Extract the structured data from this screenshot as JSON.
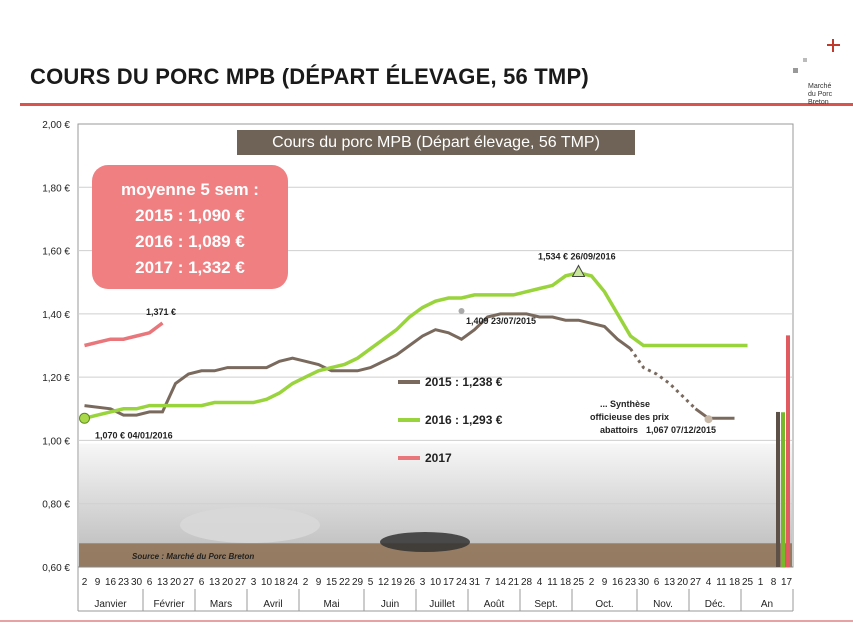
{
  "header": {
    "title": "COURS DU PORC MPB (DÉPART ÉLEVAGE, 56 TMP)",
    "logo_text": [
      "Marché",
      "du Porc",
      "Breton"
    ]
  },
  "chart_data": {
    "type": "line",
    "title": "Cours du porc MPB (Départ élevage, 56 TMP)",
    "ylim": [
      0.6,
      2.0
    ],
    "yticks": [
      "0,60 €",
      "0,80 €",
      "1,00 €",
      "1,20 €",
      "1,40 €",
      "1,60 €",
      "1,80 €",
      "2,00 €"
    ],
    "grid": true,
    "x_day_ticks": [
      "2",
      "9",
      "16",
      "23",
      "30",
      "6",
      "13",
      "20",
      "27",
      "6",
      "13",
      "20",
      "27",
      "3",
      "10",
      "18",
      "24",
      "2",
      "9",
      "15",
      "22",
      "29",
      "5",
      "12",
      "19",
      "26",
      "3",
      "10",
      "17",
      "24",
      "31",
      "7",
      "14",
      "21",
      "28",
      "4",
      "11",
      "18",
      "25",
      "2",
      "9",
      "16",
      "23",
      "30",
      "6",
      "13",
      "20",
      "27",
      "4",
      "11",
      "18",
      "25",
      "1",
      "8",
      "17"
    ],
    "months": [
      "Janvier",
      "Février",
      "Mars",
      "Avril",
      "Mai",
      "Juin",
      "Juillet",
      "Août",
      "Sept.",
      "Oct.",
      "Nov.",
      "Déc.",
      "An"
    ],
    "average_box": [
      "moyenne 5 sem :",
      "2015 : 1,090 €",
      "2016 :  1,089 €",
      "2017 :  1,332 €"
    ],
    "series": [
      {
        "name": "2015",
        "legend": "2015 : 1,238 €",
        "color": "#7a6a5e",
        "x": [
          1,
          3,
          4,
          5,
          6,
          7,
          8,
          9,
          10,
          11,
          12,
          13,
          14,
          15,
          16,
          17,
          18,
          19,
          20,
          21,
          22,
          23,
          24,
          25,
          26,
          27,
          28,
          29,
          30,
          31,
          32,
          33,
          34,
          35,
          36,
          37,
          38,
          39,
          40,
          41,
          42,
          43,
          44,
          45,
          46,
          47,
          48,
          49,
          50,
          51
        ],
        "values": [
          1.11,
          1.1,
          1.08,
          1.08,
          1.09,
          1.09,
          1.18,
          1.21,
          1.22,
          1.22,
          1.23,
          1.23,
          1.23,
          1.23,
          1.25,
          1.26,
          1.25,
          1.24,
          1.22,
          1.22,
          1.22,
          1.23,
          1.25,
          1.27,
          1.3,
          1.33,
          1.35,
          1.34,
          1.32,
          1.35,
          1.39,
          1.4,
          1.4,
          1.4,
          1.39,
          1.39,
          1.38,
          1.38,
          1.37,
          1.36,
          1.32,
          1.29,
          1.23,
          1.21,
          1.18,
          1.14,
          1.1,
          1.07,
          1.07,
          1.07
        ]
      },
      {
        "name": "2016",
        "legend": "2016 : 1,293 €",
        "color": "#99d43c",
        "x": [
          1,
          2,
          3,
          4,
          5,
          6,
          7,
          8,
          9,
          10,
          11,
          12,
          13,
          14,
          15,
          16,
          17,
          18,
          19,
          20,
          21,
          22,
          23,
          24,
          25,
          26,
          27,
          28,
          29,
          30,
          31,
          32,
          33,
          34,
          35,
          36,
          37,
          38,
          39,
          40,
          41,
          42,
          43,
          44,
          45,
          46,
          47,
          48,
          49,
          50,
          51,
          52
        ],
        "values": [
          1.07,
          1.08,
          1.09,
          1.1,
          1.1,
          1.11,
          1.11,
          1.11,
          1.11,
          1.11,
          1.12,
          1.12,
          1.12,
          1.12,
          1.13,
          1.15,
          1.18,
          1.2,
          1.22,
          1.23,
          1.24,
          1.26,
          1.29,
          1.32,
          1.35,
          1.39,
          1.42,
          1.44,
          1.45,
          1.45,
          1.46,
          1.46,
          1.46,
          1.46,
          1.47,
          1.48,
          1.49,
          1.52,
          1.53,
          1.52,
          1.47,
          1.4,
          1.33,
          1.3,
          1.3,
          1.3,
          1.3,
          1.3,
          1.3,
          1.3,
          1.3,
          1.3
        ]
      },
      {
        "name": "2017",
        "legend": "2017",
        "color": "#e8767a",
        "x": [
          1,
          2,
          3,
          4,
          5,
          6,
          7
        ],
        "values": [
          1.3,
          1.31,
          1.32,
          1.32,
          1.33,
          1.34,
          1.371
        ]
      }
    ],
    "annotations": [
      {
        "text": "1,070 € 04/01/2016",
        "x": 1,
        "y": 1.07
      },
      {
        "text": "1,371 €",
        "x": 7,
        "y": 1.371
      },
      {
        "text": "1,534 € 26/09/2016",
        "x": 39,
        "y": 1.534
      },
      {
        "text": "1,409 23/07/2015",
        "x": 30,
        "y": 1.409
      },
      {
        "text": "1,067 07/12/2015",
        "x": 49,
        "y": 1.067
      }
    ],
    "note": [
      "... Synthèse",
      "officieuse des prix",
      "abattoirs"
    ],
    "source": "Source : Marché du Porc Breton"
  }
}
